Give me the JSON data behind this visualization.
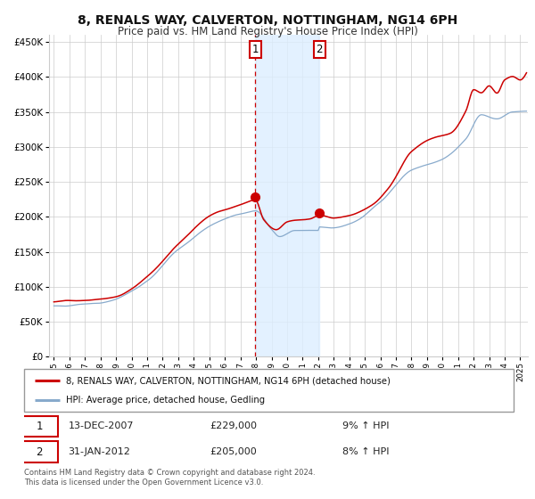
{
  "title": "8, RENALS WAY, CALVERTON, NOTTINGHAM, NG14 6PH",
  "subtitle": "Price paid vs. HM Land Registry's House Price Index (HPI)",
  "legend_line1": "8, RENALS WAY, CALVERTON, NOTTINGHAM, NG14 6PH (detached house)",
  "legend_line2": "HPI: Average price, detached house, Gedling",
  "annotation1_label": "1",
  "annotation1_date": "13-DEC-2007",
  "annotation1_price": "£229,000",
  "annotation1_hpi": "9% ↑ HPI",
  "annotation2_label": "2",
  "annotation2_date": "31-JAN-2012",
  "annotation2_price": "£205,000",
  "annotation2_hpi": "8% ↑ HPI",
  "footer": "Contains HM Land Registry data © Crown copyright and database right 2024.\nThis data is licensed under the Open Government Licence v3.0.",
  "red_line_color": "#cc0000",
  "blue_line_color": "#88aacc",
  "shade_color": "#ddeeff",
  "grid_color": "#cccccc",
  "annotation_box_color": "#cc0000",
  "dashed_line_color": "#cc0000",
  "background_color": "#ffffff",
  "ylim": [
    0,
    460000
  ],
  "yticks": [
    0,
    50000,
    100000,
    150000,
    200000,
    250000,
    300000,
    350000,
    400000,
    450000
  ],
  "sale1_x": 2007.958,
  "sale1_y": 229000,
  "sale2_x": 2012.083,
  "sale2_y": 205000,
  "shade_x1": 2007.958,
  "shade_x2": 2012.083,
  "xmin": 1994.7,
  "xmax": 2025.5
}
